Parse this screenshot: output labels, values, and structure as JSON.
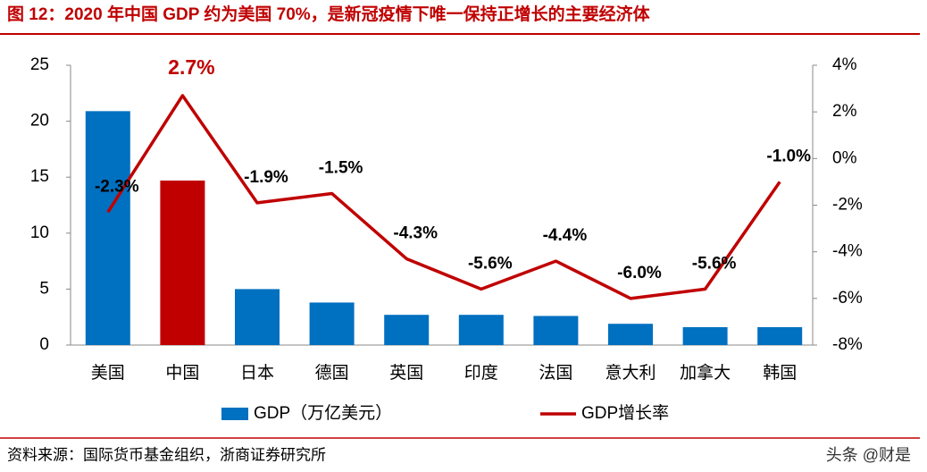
{
  "chart_data": {
    "type": "bar-line",
    "title": "图 12：2020 年中国 GDP 约为美国 70%，是新冠疫情下唯一保持正增长的主要经济体",
    "categories": [
      "美国",
      "中国",
      "日本",
      "德国",
      "英国",
      "印度",
      "法国",
      "意大利",
      "加拿大",
      "韩国"
    ],
    "series": [
      {
        "name": "GDP（万亿美元）",
        "type": "bar",
        "color": "#0070c0",
        "colors": [
          "#0070c0",
          "#c00000",
          "#0070c0",
          "#0070c0",
          "#0070c0",
          "#0070c0",
          "#0070c0",
          "#0070c0",
          "#0070c0",
          "#0070c0"
        ],
        "values": [
          20.9,
          14.7,
          5.0,
          3.8,
          2.7,
          2.7,
          2.6,
          1.9,
          1.6,
          1.6
        ]
      },
      {
        "name": "GDP增长率",
        "type": "line",
        "color": "#c00000",
        "axis": "y2",
        "values": [
          -2.3,
          2.7,
          -1.9,
          -1.5,
          -4.3,
          -5.6,
          -4.4,
          -6.0,
          -5.6,
          -1.0
        ],
        "value_labels": [
          "-2.3%",
          "2.7%",
          "-1.9%",
          "-1.5%",
          "-4.3%",
          "-5.6%",
          "-4.4%",
          "-6.0%",
          "-5.6%",
          "-1.0%"
        ]
      }
    ],
    "ylim": [
      0,
      25
    ],
    "yticks": [
      0,
      5,
      10,
      15,
      20,
      25
    ],
    "y2lim": [
      -8,
      4
    ],
    "y2ticks": [
      {
        "value": -8,
        "label": "-8%"
      },
      {
        "value": -6,
        "label": "-6%"
      },
      {
        "value": -4,
        "label": "-4%"
      },
      {
        "value": -2,
        "label": "-2%"
      },
      {
        "value": 0,
        "label": "0%"
      },
      {
        "value": 2,
        "label": "2%"
      },
      {
        "value": 4,
        "label": "4%"
      }
    ],
    "grid": false,
    "legend": "bottom",
    "source": "资料来源：国际货币基金组织，浙商证券研究所",
    "watermark": "头条 @财是"
  }
}
